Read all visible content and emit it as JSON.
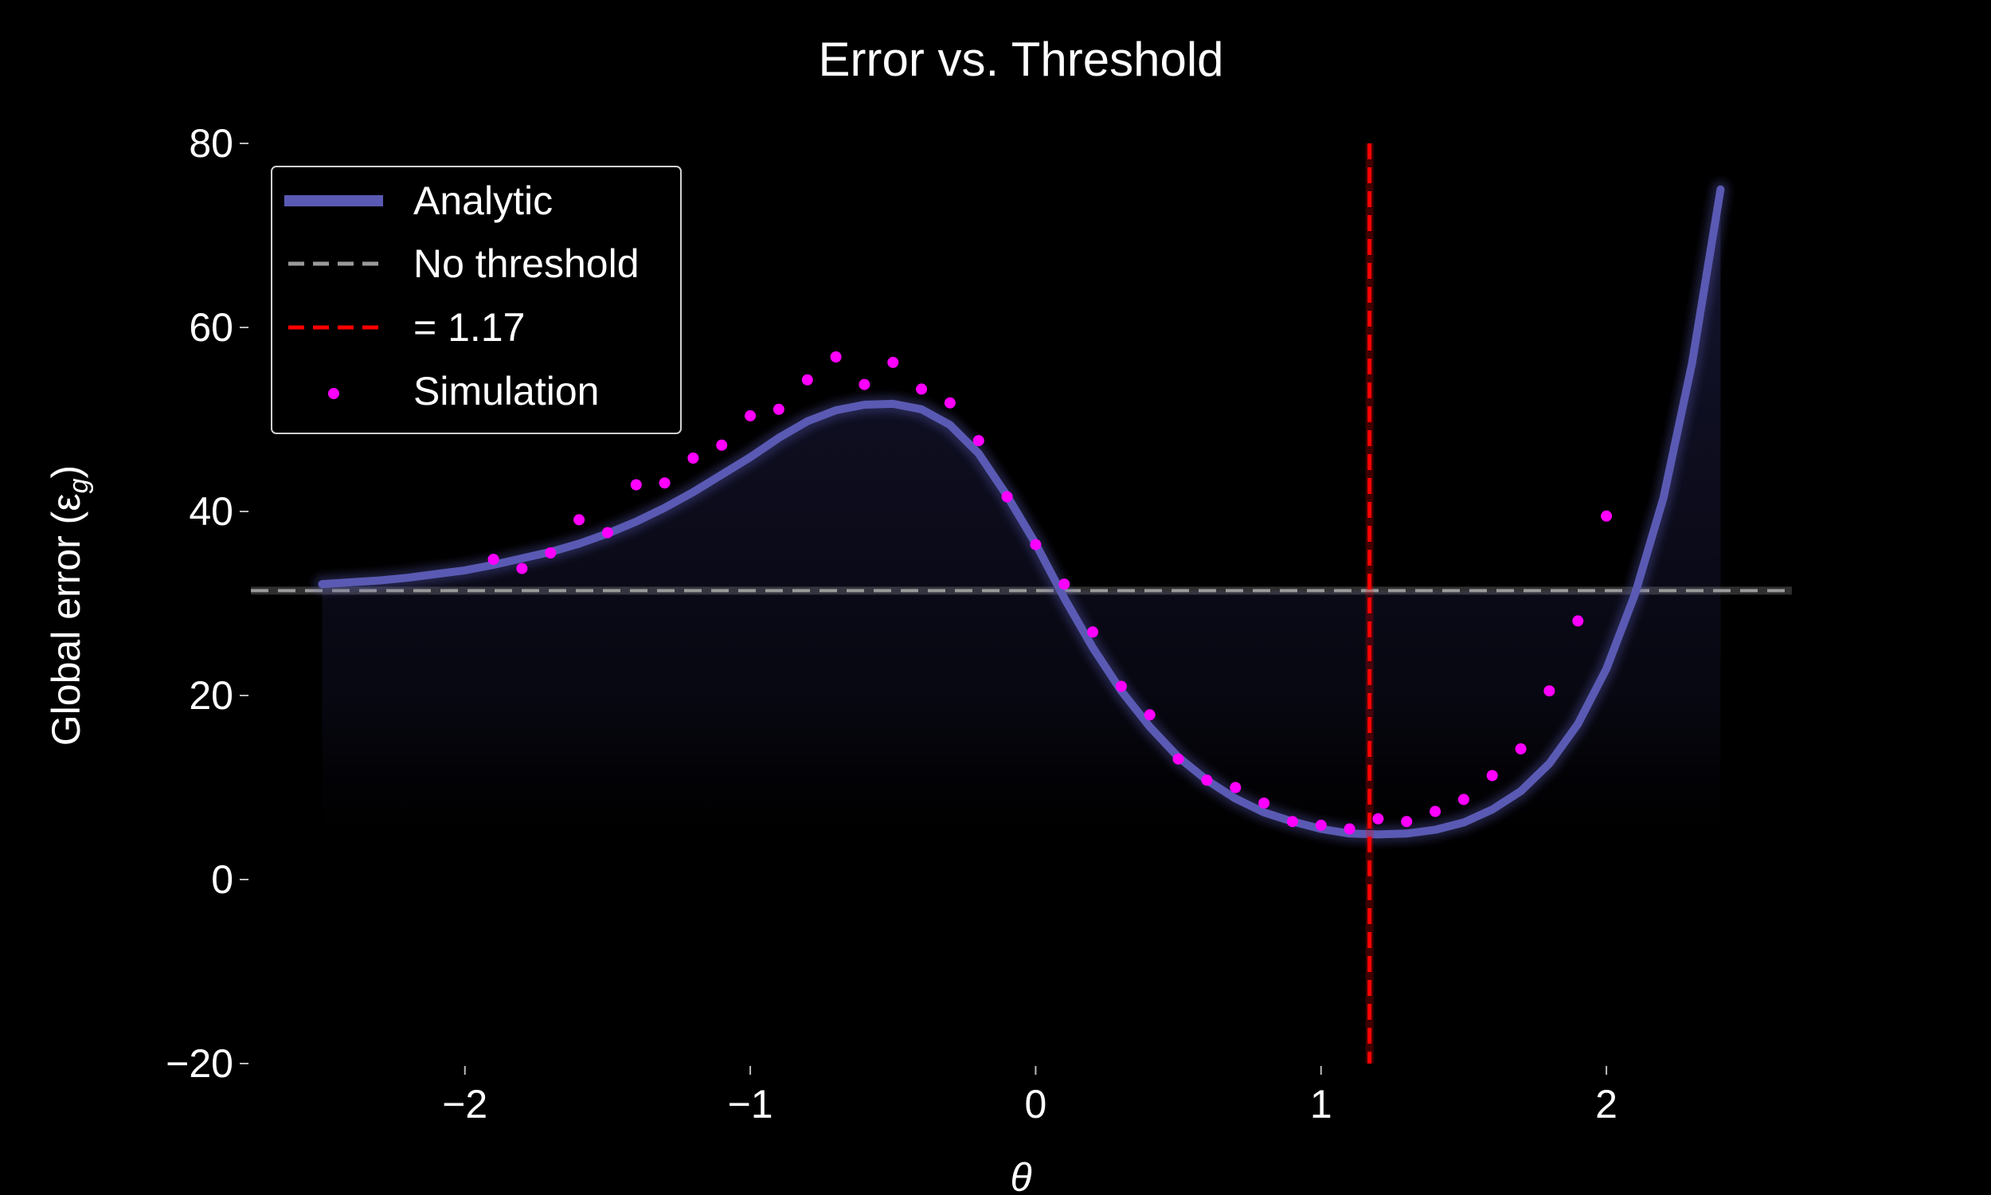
{
  "chart_data": {
    "type": "line",
    "title": "Error vs. Threshold",
    "xlabel": "θ",
    "ylabel": "Global error (ε",
    "ylabel_sub": "g",
    "ylabel_close": ")",
    "xlim": [
      -2.75,
      2.65
    ],
    "ylim": [
      -20,
      80
    ],
    "xticks": [
      -2,
      -1,
      0,
      1,
      2
    ],
    "xtick_labels": [
      "−2",
      "−1",
      "0",
      "1",
      "2"
    ],
    "yticks": [
      -20,
      0,
      20,
      40,
      60,
      80
    ],
    "ytick_labels": [
      "−20",
      "0",
      "20",
      "40",
      "60",
      "80"
    ],
    "grid": false,
    "legend_position": "top-left",
    "colors": {
      "analytic": "#5757b0",
      "baseline": "#9a9a9a",
      "optimum": "#ff0000",
      "simulation": "#ff00ff",
      "fill_top": "#1c1c40"
    },
    "series": [
      {
        "name": "Analytic",
        "kind": "line",
        "x": [
          -2.5,
          -2.4,
          -2.3,
          -2.2,
          -2.1,
          -2.0,
          -1.9,
          -1.8,
          -1.7,
          -1.6,
          -1.5,
          -1.4,
          -1.3,
          -1.2,
          -1.1,
          -1.0,
          -0.9,
          -0.8,
          -0.7,
          -0.6,
          -0.5,
          -0.4,
          -0.3,
          -0.2,
          -0.1,
          0.0,
          0.1,
          0.2,
          0.3,
          0.4,
          0.5,
          0.6,
          0.7,
          0.8,
          0.9,
          1.0,
          1.1,
          1.2,
          1.3,
          1.4,
          1.5,
          1.6,
          1.7,
          1.8,
          1.9,
          2.0,
          2.1,
          2.2,
          2.3,
          2.4
        ],
        "y": [
          32.1,
          32.3,
          32.5,
          32.8,
          33.2,
          33.6,
          34.2,
          34.9,
          35.6,
          36.5,
          37.6,
          38.9,
          40.4,
          42.1,
          44.0,
          45.9,
          48.0,
          49.8,
          51.0,
          51.6,
          51.7,
          51.1,
          49.4,
          46.3,
          41.7,
          36.5,
          30.6,
          25.2,
          20.5,
          16.6,
          13.3,
          10.8,
          8.8,
          7.3,
          6.3,
          5.5,
          5.0,
          4.9,
          5.0,
          5.4,
          6.2,
          7.6,
          9.6,
          12.6,
          16.9,
          22.9,
          31.0,
          41.5,
          56.1,
          75.0
        ]
      },
      {
        "name": "No threshold",
        "kind": "hline",
        "y": 31.4,
        "x_range": [
          -2.75,
          2.65
        ]
      },
      {
        "name": "= 1.17",
        "kind": "vline",
        "x": 1.17
      },
      {
        "name": "Simulation",
        "kind": "scatter",
        "x": [
          -1.9,
          -1.8,
          -1.7,
          -1.6,
          -1.5,
          -1.4,
          -1.3,
          -1.2,
          -1.1,
          -1.0,
          -0.9,
          -0.8,
          -0.7,
          -0.6,
          -0.5,
          -0.4,
          -0.3,
          -0.2,
          -0.1,
          0.0,
          0.1,
          0.2,
          0.3,
          0.4,
          0.5,
          0.6,
          0.7,
          0.8,
          0.9,
          1.0,
          1.1,
          1.2,
          1.3,
          1.4,
          1.5,
          1.6,
          1.7,
          1.8,
          1.9,
          2.0
        ],
        "y": [
          34.8,
          33.8,
          35.5,
          39.1,
          37.7,
          42.9,
          43.1,
          45.8,
          47.2,
          50.4,
          51.1,
          54.3,
          56.8,
          53.8,
          56.2,
          53.3,
          51.8,
          47.7,
          41.6,
          36.4,
          32.1,
          26.9,
          21.0,
          17.9,
          13.1,
          10.8,
          10.0,
          8.3,
          6.3,
          5.9,
          5.5,
          6.6,
          6.3,
          7.4,
          8.7,
          11.3,
          14.2,
          20.5,
          28.1,
          39.5
        ]
      }
    ]
  }
}
